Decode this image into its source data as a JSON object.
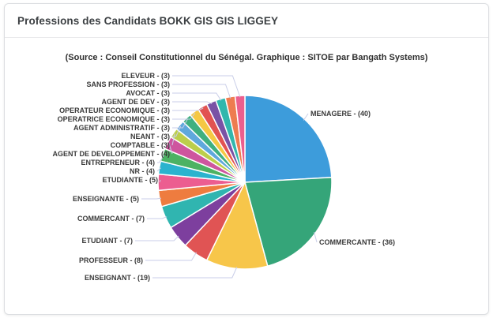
{
  "header": {
    "title": "Professions des Candidats BOKK GIS GIS LIGGEY"
  },
  "chart": {
    "subtitle": "(Source : Conseil Constitutionnel du Sénégal. Graphique : SITOE par Bangath Systems)"
  },
  "chart_data": {
    "type": "pie",
    "title": "Professions des Candidats BOKK GIS GIS LIGGEY",
    "subtitle": "(Source : Conseil Constitutionnel du Sénégal. Graphique : SITOE par Bangath Systems)",
    "total": 166,
    "legend_position": "none",
    "label_format": "{label} - ({value})",
    "start_angle_deg": 0,
    "direction": "clockwise",
    "slices": [
      {
        "label": "MENAGERE",
        "value": 40,
        "color": "#3d9cdb"
      },
      {
        "label": "COMMERCANTE",
        "value": 36,
        "color": "#35a579"
      },
      {
        "label": "ENSEIGNANT",
        "value": 19,
        "color": "#f7c64a"
      },
      {
        "label": "PROFESSEUR",
        "value": 8,
        "color": "#e05454"
      },
      {
        "label": "ETUDIANT",
        "value": 7,
        "color": "#7d3f9e"
      },
      {
        "label": "COMMERCANT",
        "value": 7,
        "color": "#30b5b0"
      },
      {
        "label": "ENSEIGNANTE",
        "value": 5,
        "color": "#ee7c3f"
      },
      {
        "label": "ETUDIANTE",
        "value": 5,
        "color": "#ec5d90"
      },
      {
        "label": "NR",
        "value": 4,
        "color": "#2bb3ce"
      },
      {
        "label": "ENTREPRENEUR",
        "value": 4,
        "color": "#4cb263"
      },
      {
        "label": "AGENT DE DEVELOPPEMENT",
        "value": 4,
        "color": "#ce559e"
      },
      {
        "label": "COMPTABLE",
        "value": 3,
        "color": "#bcce4b"
      },
      {
        "label": "NEANT",
        "value": 3,
        "color": "#5fa8dc"
      },
      {
        "label": "AGENT ADMINISTRATIF",
        "value": 3,
        "color": "#3fb07f"
      },
      {
        "label": "OPERATRICE ECONOMIQUE",
        "value": 3,
        "color": "#f5c843"
      },
      {
        "label": "OPERATEUR ECONOMIQUE",
        "value": 3,
        "color": "#e25352"
      },
      {
        "label": "AGENT DE DEV",
        "value": 3,
        "color": "#7a52a5"
      },
      {
        "label": "AVOCAT",
        "value": 3,
        "color": "#32b7ad"
      },
      {
        "label": "SANS PROFESSION",
        "value": 3,
        "color": "#ee7c50"
      },
      {
        "label": "ELEVEUR",
        "value": 3,
        "color": "#ec5f8e"
      }
    ]
  }
}
